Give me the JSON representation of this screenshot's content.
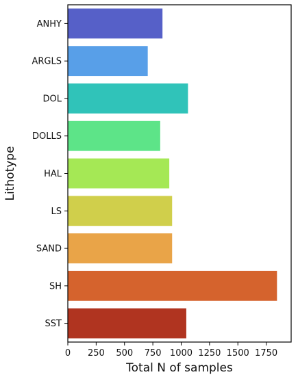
{
  "chart_data": {
    "type": "bar",
    "orientation": "horizontal",
    "xlabel": "Total N of samples",
    "ylabel": "Lithotype",
    "categories": [
      "ANHY",
      "ARGLS",
      "DOL",
      "DOLLS",
      "HAL",
      "LS",
      "SAND",
      "SH",
      "SST"
    ],
    "values": [
      835,
      705,
      1060,
      815,
      895,
      920,
      920,
      1845,
      1045
    ],
    "colors": [
      "#5660c8",
      "#589fe8",
      "#30c3b9",
      "#5de488",
      "#a5e855",
      "#d0cf4b",
      "#e9a448",
      "#d5632d",
      "#b03420"
    ],
    "xlim": [
      0,
      1970
    ],
    "xticks": [
      0,
      250,
      500,
      750,
      1000,
      1250,
      1500,
      1750
    ],
    "xtick_labels": [
      "0",
      "250",
      "500",
      "750",
      "1000",
      "1250",
      "1500",
      "1750"
    ],
    "grid": false,
    "legend": "none"
  }
}
